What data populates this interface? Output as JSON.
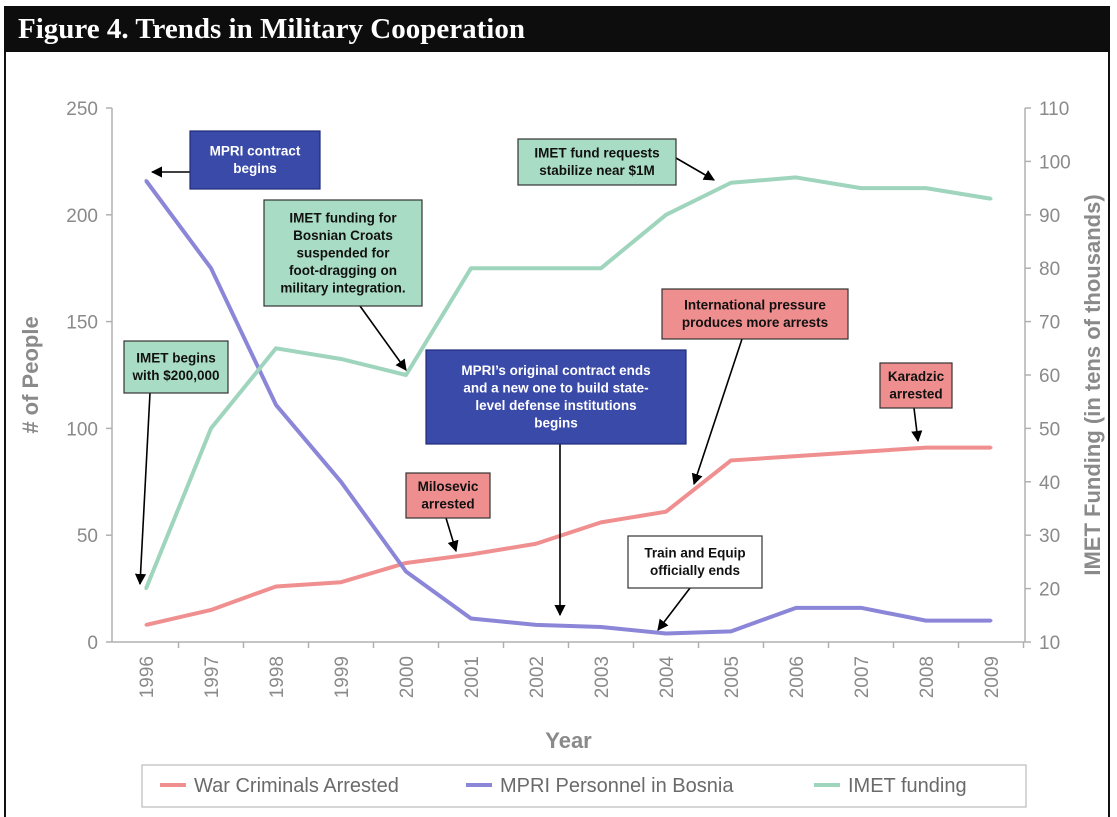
{
  "figure": {
    "title": "Figure 4. Trends in Military Cooperation"
  },
  "colors": {
    "war_criminals": "#f08f8f",
    "mpri": "#8c86d8",
    "imet": "#9fd4bd",
    "box_blue": "#3a4aa8",
    "box_green": "#a9dcc4",
    "box_red": "#ef8e8e",
    "box_white": "#ffffff"
  },
  "chart_data": {
    "type": "line",
    "xlabel": "Year",
    "ylabel": "# of People",
    "y2label": "IMET Funding (in tens of thousands)",
    "categories": [
      "1996",
      "1997",
      "1998",
      "1999",
      "2000",
      "2001",
      "2002",
      "2003",
      "2004",
      "2005",
      "2006",
      "2007",
      "2008",
      "2009"
    ],
    "ylim": [
      0,
      250
    ],
    "yticks": [
      0,
      50,
      100,
      150,
      200,
      250
    ],
    "y2lim": [
      10,
      110
    ],
    "y2ticks": [
      10,
      20,
      30,
      40,
      50,
      60,
      70,
      80,
      90,
      100,
      110
    ],
    "grid": false,
    "legend_position": "bottom",
    "series": [
      {
        "name": "War Criminals Arrested",
        "axis": "left",
        "color_key": "war_criminals",
        "values": [
          8,
          15,
          26,
          28,
          37,
          41,
          46,
          56,
          61,
          85,
          87,
          89,
          91,
          91
        ]
      },
      {
        "name": "MPRI Personnel in Bosnia",
        "axis": "left",
        "color_key": "mpri",
        "values": [
          216,
          175,
          111,
          75,
          33,
          11,
          8,
          7,
          4,
          5,
          16,
          16,
          10,
          10
        ]
      },
      {
        "name": "IMET funding",
        "axis": "right",
        "color_key": "imet",
        "values": [
          20,
          50,
          65,
          63,
          60,
          80,
          80,
          80,
          90,
          96,
          97,
          95,
          95,
          93
        ]
      }
    ],
    "annotations": [
      {
        "id": "mpri-begins",
        "lines": [
          "MPRI contract",
          "begins"
        ],
        "style": "blue",
        "target_year": "1996",
        "target_series": "MPRI Personnel in Bosnia"
      },
      {
        "id": "imet-suspended",
        "lines": [
          "IMET funding for",
          "Bosnian Croats",
          "suspended for",
          "foot-dragging on",
          "military integration."
        ],
        "style": "green",
        "target_year": "2000",
        "target_series": "IMET funding"
      },
      {
        "id": "imet-stabilize",
        "lines": [
          "IMET fund requests",
          "stabilize near $1M"
        ],
        "style": "green",
        "target_year": "2005",
        "target_series": "IMET funding"
      },
      {
        "id": "imet-begins",
        "lines": [
          "IMET begins",
          "with $200,000"
        ],
        "style": "green",
        "target_year": "1996",
        "target_series": "IMET funding"
      },
      {
        "id": "mpri-new",
        "lines": [
          "MPRI’s original contract ends",
          "and a new one to build state-",
          "level defense institutions",
          "begins"
        ],
        "style": "blue",
        "target_year": "2002",
        "target_series": "MPRI Personnel in Bosnia"
      },
      {
        "id": "intl-pressure",
        "lines": [
          "International pressure",
          "produces more arrests"
        ],
        "style": "red",
        "target_year": "2004",
        "target_series": "War Criminals Arrested"
      },
      {
        "id": "karadzic",
        "lines": [
          "Karadzic",
          "arrested"
        ],
        "style": "red",
        "target_year": "2008",
        "target_series": "War Criminals Arrested"
      },
      {
        "id": "milosevic",
        "lines": [
          "Milosevic",
          "arrested"
        ],
        "style": "red",
        "target_year": "2001",
        "target_series": "War Criminals Arrested"
      },
      {
        "id": "train-equip",
        "lines": [
          "Train and Equip",
          "officially ends"
        ],
        "style": "white",
        "target_year": "2004",
        "target_series": "MPRI Personnel in Bosnia"
      }
    ]
  }
}
